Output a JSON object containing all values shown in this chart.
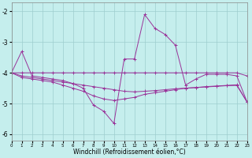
{
  "xlabel": "Windchill (Refroidissement éolien,°C)",
  "bg_color": "#c5eeed",
  "line_color": "#993399",
  "grid_color": "#9ecece",
  "xlim": [
    0,
    23
  ],
  "ylim": [
    -6.2,
    -1.7
  ],
  "yticks": [
    -6,
    -5,
    -4,
    -3,
    -2
  ],
  "xticks": [
    0,
    1,
    2,
    3,
    4,
    5,
    6,
    7,
    8,
    9,
    10,
    11,
    12,
    13,
    14,
    15,
    16,
    17,
    18,
    19,
    20,
    21,
    22,
    23
  ],
  "s1x": [
    0,
    1,
    2,
    3,
    4,
    5,
    6,
    7,
    8,
    9,
    10,
    11,
    12,
    13,
    14,
    15,
    16,
    17,
    18,
    19,
    20,
    21,
    22,
    23
  ],
  "s1y": [
    -4.0,
    -3.3,
    -4.1,
    -4.15,
    -4.2,
    -4.25,
    -4.35,
    -4.5,
    -5.05,
    -5.25,
    -5.65,
    -3.55,
    -3.55,
    -2.1,
    -2.55,
    -2.75,
    -3.1,
    -4.4,
    -4.2,
    -4.05,
    -4.05,
    -4.05,
    -4.1,
    -4.95
  ],
  "s2x": [
    0,
    1,
    2,
    3,
    4,
    5,
    6,
    7,
    8,
    9,
    10,
    11,
    12,
    13,
    14,
    15,
    16,
    17,
    18,
    19,
    20,
    21,
    22,
    23
  ],
  "s2y": [
    -4.0,
    -4.0,
    -4.0,
    -4.0,
    -4.0,
    -4.0,
    -4.0,
    -4.0,
    -4.0,
    -4.0,
    -4.0,
    -4.0,
    -4.0,
    -4.0,
    -4.0,
    -4.0,
    -4.0,
    -4.0,
    -4.0,
    -4.0,
    -4.0,
    -4.0,
    -4.0,
    -4.1
  ],
  "s3x": [
    0,
    1,
    2,
    3,
    4,
    5,
    6,
    7,
    8,
    9,
    10,
    11,
    12,
    13,
    14,
    15,
    16,
    17,
    18,
    19,
    20,
    21,
    22,
    23
  ],
  "s3y": [
    -4.0,
    -4.1,
    -4.15,
    -4.2,
    -4.25,
    -4.3,
    -4.35,
    -4.4,
    -4.45,
    -4.5,
    -4.55,
    -4.6,
    -4.62,
    -4.6,
    -4.58,
    -4.55,
    -4.52,
    -4.5,
    -4.48,
    -4.45,
    -4.43,
    -4.41,
    -4.39,
    -4.95
  ],
  "s4x": [
    0,
    1,
    2,
    3,
    4,
    5,
    6,
    7,
    8,
    9,
    10,
    11,
    12,
    13,
    14,
    15,
    16,
    17,
    18,
    19,
    20,
    21,
    22,
    23
  ],
  "s4y": [
    -4.0,
    -4.15,
    -4.2,
    -4.25,
    -4.3,
    -4.4,
    -4.5,
    -4.6,
    -4.75,
    -4.85,
    -4.9,
    -4.85,
    -4.8,
    -4.7,
    -4.65,
    -4.6,
    -4.55,
    -4.5,
    -4.48,
    -4.46,
    -4.44,
    -4.42,
    -4.41,
    -4.95
  ]
}
